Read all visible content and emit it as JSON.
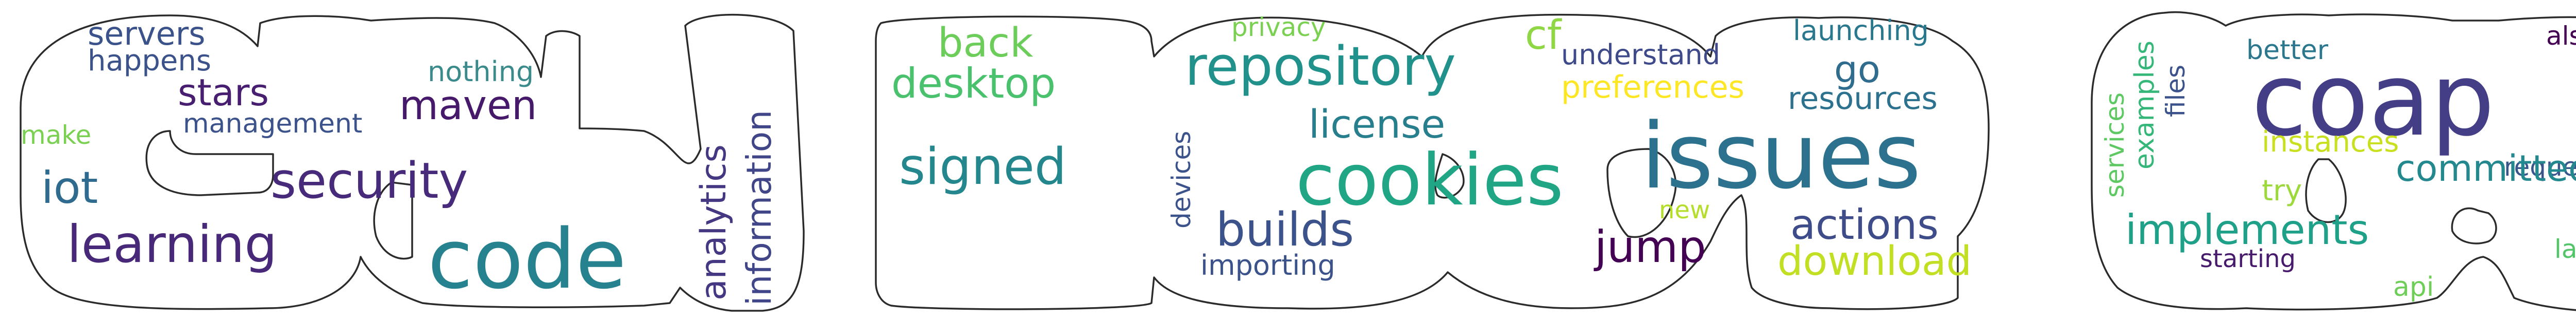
{
  "panels": [
    {
      "id": "panel-1",
      "words": [
        {
          "text": "servers",
          "color": "#3b528b"
        },
        {
          "text": "happens",
          "color": "#3b528b"
        },
        {
          "text": "",
          "color": "#440154"
        },
        {
          "text": "nothing",
          "color": "#3b8a8c"
        },
        {
          "text": "stars",
          "color": "#481f70"
        },
        {
          "text": "maven",
          "color": "#46196b"
        },
        {
          "text": "make",
          "color": "#7ad151"
        },
        {
          "text": "management",
          "color": "#3b528b"
        },
        {
          "text": "iot",
          "color": "#2f6b8e"
        },
        {
          "text": "security",
          "color": "#472a7a"
        },
        {
          "text": "learning",
          "color": "#482878"
        },
        {
          "text": "code",
          "color": "#26828e"
        },
        {
          "text": "analytics",
          "color": "#453781"
        },
        {
          "text": "information",
          "color": "#404688"
        }
      ]
    },
    {
      "id": "panel-2",
      "words": [
        {
          "text": "back",
          "color": "#6ccd5a"
        },
        {
          "text": "desktop",
          "color": "#4ac16d"
        },
        {
          "text": "signed",
          "color": "#24878e"
        },
        {
          "text": "privacy",
          "color": "#7ad151"
        },
        {
          "text": "cf",
          "color": "#8fd744"
        },
        {
          "text": "understand",
          "color": "#3e4a89"
        },
        {
          "text": "launching",
          "color": "#2a788e"
        },
        {
          "text": "repository",
          "color": "#21918c"
        },
        {
          "text": "preferences",
          "color": "#fde725"
        },
        {
          "text": "go",
          "color": "#2f6c8e"
        },
        {
          "text": "resources",
          "color": "#2c728e"
        },
        {
          "text": "",
          "color": "#443983"
        },
        {
          "text": "license",
          "color": "#277f8e"
        },
        {
          "text": "devices",
          "color": "#3b528b"
        },
        {
          "text": "cookies",
          "color": "#21a685"
        },
        {
          "text": "issues",
          "color": "#2c718e"
        },
        {
          "text": "builds",
          "color": "#3b528b"
        },
        {
          "text": "new",
          "color": "#b5de2b"
        },
        {
          "text": "actions",
          "color": "#3e4c8a"
        },
        {
          "text": "importing",
          "color": "#3b528b"
        },
        {
          "text": "jump",
          "color": "#440154"
        },
        {
          "text": "download",
          "color": "#c2df23"
        }
      ]
    },
    {
      "id": "panel-3",
      "words": [
        {
          "text": "better",
          "color": "#2a778e"
        },
        {
          "text": "also",
          "color": "#440154"
        },
        {
          "text": "coap",
          "color": "#433e85"
        },
        {
          "text": "examples",
          "color": "#35b779"
        },
        {
          "text": "files",
          "color": "#3b528b"
        },
        {
          "text": "services",
          "color": "#5ec962"
        },
        {
          "text": "instances",
          "color": "#c8e020"
        },
        {
          "text": "requests",
          "color": "#39568c"
        },
        {
          "text": "try",
          "color": "#9dd93b"
        },
        {
          "text": "committed",
          "color": "#23898e"
        },
        {
          "text": "implements",
          "color": "#1fa088"
        },
        {
          "text": "starting",
          "color": "#481a6c"
        },
        {
          "text": "api",
          "color": "#6ece58"
        },
        {
          "text": "latest",
          "color": "#52c569"
        }
      ]
    }
  ]
}
